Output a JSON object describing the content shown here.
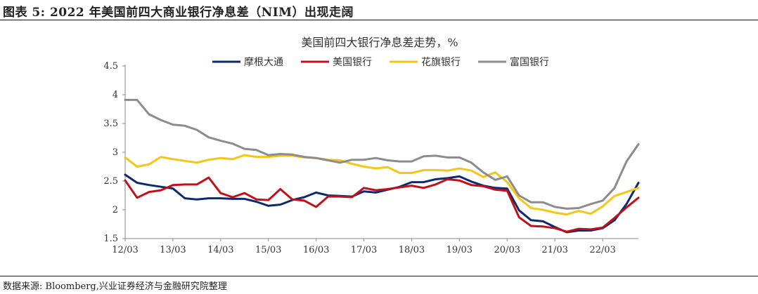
{
  "figure_title": "图表 5: 2022 年美国前四大商业银行净息差（NIM）出现走阔",
  "source_note": "数据来源: Bloomberg,兴业证券经济与金融研究院整理",
  "colors": {
    "jpm": "#0d2a6e",
    "boa": "#c0101a",
    "citi": "#f5c518",
    "wells": "#8c8c8c"
  },
  "chart_data": {
    "type": "line",
    "title": "美国前四大银行净息差走势，%",
    "legend_position": "top",
    "grid": false,
    "ylim": [
      1.5,
      4.5
    ],
    "yticks": [
      1.5,
      2,
      2.5,
      3,
      3.5,
      4,
      4.5
    ],
    "ytick_labels": [
      "1.5",
      "2",
      "2.5",
      "3",
      "3.5",
      "4",
      "4.5"
    ],
    "xtick_labels": [
      "12/03",
      "13/03",
      "14/03",
      "15/03",
      "16/03",
      "17/03",
      "18/03",
      "19/03",
      "20/03",
      "21/03",
      "22/03"
    ],
    "x": [
      "12Q1",
      "12Q2",
      "12Q3",
      "12Q4",
      "13Q1",
      "13Q2",
      "13Q3",
      "13Q4",
      "14Q1",
      "14Q2",
      "14Q3",
      "14Q4",
      "15Q1",
      "15Q2",
      "15Q3",
      "15Q4",
      "16Q1",
      "16Q2",
      "16Q3",
      "16Q4",
      "17Q1",
      "17Q2",
      "17Q3",
      "17Q4",
      "18Q1",
      "18Q2",
      "18Q3",
      "18Q4",
      "19Q1",
      "19Q2",
      "19Q3",
      "19Q4",
      "20Q1",
      "20Q2",
      "20Q3",
      "20Q4",
      "21Q1",
      "21Q2",
      "21Q3",
      "21Q4",
      "22Q1",
      "22Q2",
      "22Q3",
      "22Q4"
    ],
    "series": [
      {
        "name": "摩根大通",
        "color_key": "jpm",
        "values": [
          2.61,
          2.47,
          2.43,
          2.4,
          2.37,
          2.2,
          2.18,
          2.2,
          2.2,
          2.19,
          2.19,
          2.14,
          2.07,
          2.09,
          2.17,
          2.22,
          2.3,
          2.25,
          2.24,
          2.23,
          2.32,
          2.3,
          2.35,
          2.4,
          2.48,
          2.48,
          2.53,
          2.55,
          2.58,
          2.49,
          2.42,
          2.38,
          2.37,
          1.99,
          1.82,
          1.8,
          1.7,
          1.61,
          1.64,
          1.64,
          1.68,
          1.82,
          2.1,
          2.47
        ]
      },
      {
        "name": "美国银行",
        "color_key": "boa",
        "values": [
          2.51,
          2.21,
          2.31,
          2.34,
          2.43,
          2.44,
          2.44,
          2.56,
          2.29,
          2.22,
          2.29,
          2.18,
          2.17,
          2.36,
          2.18,
          2.16,
          2.05,
          2.23,
          2.23,
          2.22,
          2.38,
          2.34,
          2.36,
          2.39,
          2.42,
          2.38,
          2.44,
          2.53,
          2.51,
          2.43,
          2.41,
          2.35,
          2.33,
          1.87,
          1.72,
          1.71,
          1.68,
          1.62,
          1.67,
          1.66,
          1.69,
          1.86,
          2.04,
          2.21
        ]
      },
      {
        "name": "花旗银行",
        "color_key": "citi",
        "values": [
          2.91,
          2.75,
          2.79,
          2.92,
          2.88,
          2.85,
          2.82,
          2.87,
          2.9,
          2.88,
          2.95,
          2.92,
          2.92,
          2.94,
          2.94,
          2.91,
          2.9,
          2.87,
          2.86,
          2.8,
          2.75,
          2.72,
          2.74,
          2.64,
          2.64,
          2.69,
          2.69,
          2.68,
          2.72,
          2.68,
          2.57,
          2.65,
          2.48,
          2.2,
          2.03,
          2.0,
          1.95,
          1.92,
          1.98,
          1.93,
          2.06,
          2.24,
          2.31,
          2.38
        ]
      },
      {
        "name": "富国银行",
        "color_key": "wells",
        "values": [
          3.91,
          3.91,
          3.66,
          3.56,
          3.48,
          3.46,
          3.39,
          3.26,
          3.2,
          3.15,
          3.06,
          3.04,
          2.95,
          2.97,
          2.96,
          2.92,
          2.9,
          2.86,
          2.82,
          2.87,
          2.87,
          2.9,
          2.86,
          2.84,
          2.84,
          2.93,
          2.94,
          2.91,
          2.91,
          2.82,
          2.65,
          2.52,
          2.58,
          2.25,
          2.13,
          2.13,
          2.05,
          2.02,
          2.03,
          2.1,
          2.16,
          2.38,
          2.84,
          3.14
        ]
      }
    ]
  }
}
